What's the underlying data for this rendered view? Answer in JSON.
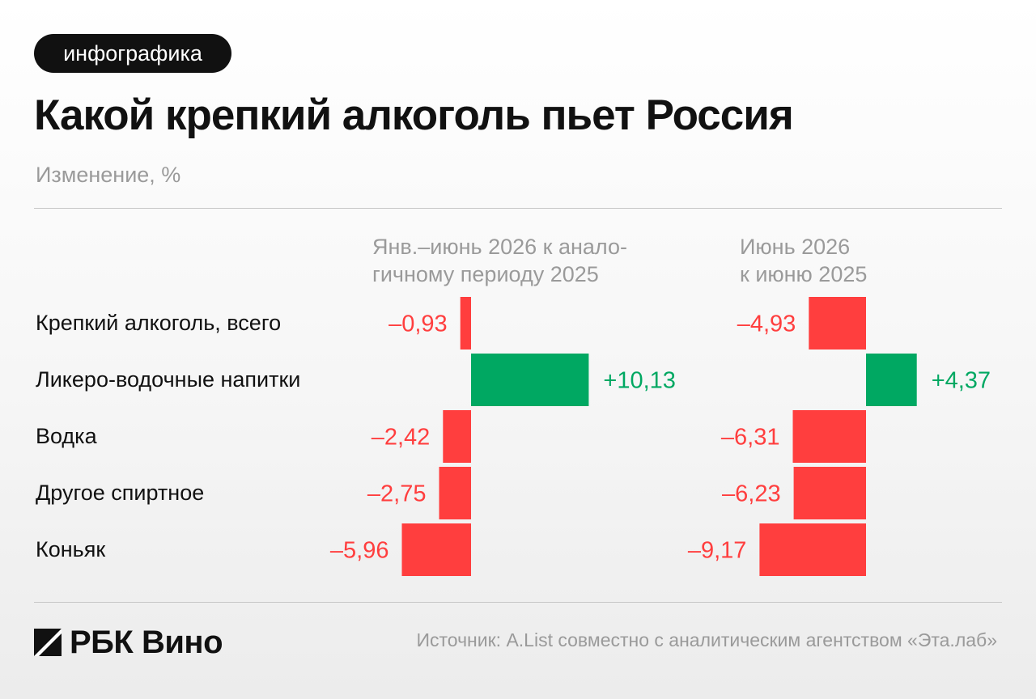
{
  "badge": "инфографика",
  "title": "Какой крепкий алкоголь пьет Россия",
  "subtitle": "Изменение, %",
  "colors": {
    "positive": "#00a862",
    "negative": "#ff3e3e"
  },
  "brand": {
    "name": "РБК Вино",
    "logo_icon": "rbc-slash-logo-icon"
  },
  "source": "Источник: A.List совместно с аналитическим агентством «Эта.лаб»",
  "chart_data": {
    "type": "bar",
    "orientation": "horizontal",
    "categories": [
      "Крепкий алкоголь, всего",
      "Ликеро-водочные напитки",
      "Водка",
      "Другое спиртное",
      "Коньяк"
    ],
    "series": [
      {
        "name": "Янв.–июнь 2026 к аналогичному периоду 2025",
        "header": "Янв.–июнь 2026 к анало-\nгичному периоду 2025",
        "values": [
          -0.93,
          10.13,
          -2.42,
          -2.75,
          -5.96
        ],
        "labels": [
          "–0,93",
          "+10,13",
          "–2,42",
          "–2,75",
          "–5,96"
        ]
      },
      {
        "name": "Июнь 2026 к июню 2025",
        "header": "Июнь 2026\nк июню 2025",
        "values": [
          -4.93,
          4.37,
          -6.31,
          -6.23,
          -9.17
        ],
        "labels": [
          "–4,93",
          "+4,37",
          "–6,31",
          "–6,23",
          "–9,17"
        ]
      }
    ]
  }
}
